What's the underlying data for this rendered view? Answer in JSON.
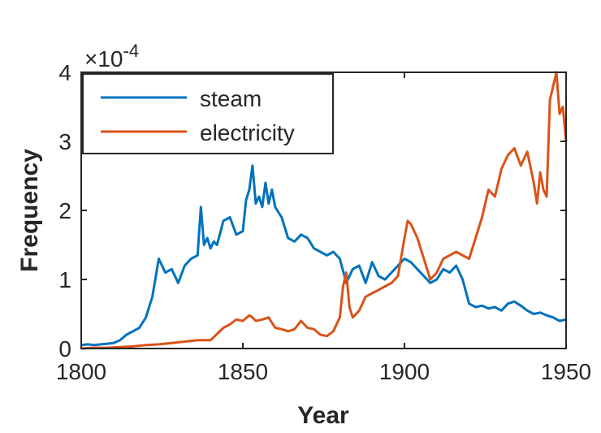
{
  "chart_data": {
    "type": "line",
    "xlabel": "Year",
    "ylabel": "Frequency",
    "y_multiplier": "×10",
    "y_exponent": "-4",
    "xlim": [
      1800,
      1950
    ],
    "ylim": [
      0,
      4
    ],
    "xticks": [
      "1800",
      "1850",
      "1900",
      "1950"
    ],
    "yticks": [
      "0",
      "1",
      "2",
      "3",
      "4"
    ],
    "grid": false,
    "legend_position": "top-left",
    "series": [
      {
        "name": "steam",
        "color": "#0072BD",
        "x": [
          1800,
          1802,
          1804,
          1806,
          1808,
          1810,
          1812,
          1814,
          1816,
          1818,
          1820,
          1822,
          1824,
          1826,
          1828,
          1830,
          1832,
          1834,
          1836,
          1837,
          1838,
          1839,
          1840,
          1841,
          1842,
          1844,
          1846,
          1848,
          1850,
          1851,
          1852,
          1853,
          1854,
          1855,
          1856,
          1857,
          1858,
          1859,
          1860,
          1862,
          1864,
          1866,
          1868,
          1870,
          1872,
          1874,
          1876,
          1878,
          1880,
          1882,
          1884,
          1886,
          1888,
          1890,
          1892,
          1894,
          1896,
          1898,
          1900,
          1902,
          1904,
          1906,
          1908,
          1910,
          1912,
          1914,
          1916,
          1918,
          1920,
          1922,
          1924,
          1926,
          1928,
          1930,
          1932,
          1934,
          1936,
          1938,
          1940,
          1942,
          1944,
          1946,
          1948,
          1950
        ],
        "y": [
          0.05,
          0.06,
          0.05,
          0.06,
          0.07,
          0.08,
          0.12,
          0.2,
          0.25,
          0.3,
          0.45,
          0.75,
          1.3,
          1.1,
          1.15,
          0.95,
          1.2,
          1.3,
          1.35,
          2.05,
          1.5,
          1.6,
          1.45,
          1.55,
          1.5,
          1.85,
          1.9,
          1.65,
          1.7,
          2.15,
          2.3,
          2.65,
          2.1,
          2.2,
          2.05,
          2.4,
          2.1,
          2.3,
          2.05,
          1.9,
          1.6,
          1.55,
          1.65,
          1.6,
          1.45,
          1.4,
          1.35,
          1.4,
          1.3,
          0.95,
          1.15,
          1.2,
          0.95,
          1.25,
          1.05,
          1.0,
          1.1,
          1.2,
          1.3,
          1.25,
          1.15,
          1.05,
          0.95,
          1.0,
          1.15,
          1.1,
          1.2,
          1.0,
          0.65,
          0.6,
          0.62,
          0.58,
          0.6,
          0.55,
          0.65,
          0.68,
          0.62,
          0.55,
          0.5,
          0.52,
          0.48,
          0.45,
          0.4,
          0.42
        ]
      },
      {
        "name": "electricity",
        "color": "#D95319",
        "x": [
          1800,
          1804,
          1808,
          1812,
          1816,
          1820,
          1824,
          1828,
          1832,
          1836,
          1840,
          1844,
          1846,
          1848,
          1850,
          1852,
          1853,
          1854,
          1856,
          1858,
          1860,
          1862,
          1864,
          1866,
          1868,
          1870,
          1872,
          1874,
          1876,
          1878,
          1880,
          1881,
          1882,
          1883,
          1884,
          1886,
          1888,
          1890,
          1892,
          1894,
          1896,
          1898,
          1900,
          1901,
          1902,
          1904,
          1906,
          1908,
          1910,
          1912,
          1914,
          1916,
          1918,
          1920,
          1922,
          1924,
          1926,
          1928,
          1930,
          1932,
          1934,
          1936,
          1938,
          1940,
          1941,
          1942,
          1943,
          1944,
          1945,
          1946,
          1947,
          1948,
          1949,
          1950
        ],
        "y": [
          0.0,
          0.01,
          0.01,
          0.02,
          0.03,
          0.05,
          0.06,
          0.08,
          0.1,
          0.12,
          0.12,
          0.3,
          0.35,
          0.42,
          0.4,
          0.48,
          0.45,
          0.4,
          0.42,
          0.45,
          0.3,
          0.28,
          0.25,
          0.28,
          0.4,
          0.3,
          0.28,
          0.2,
          0.18,
          0.25,
          0.45,
          0.9,
          1.1,
          0.6,
          0.45,
          0.55,
          0.75,
          0.8,
          0.85,
          0.9,
          0.95,
          1.05,
          1.6,
          1.85,
          1.8,
          1.6,
          1.3,
          1.0,
          1.1,
          1.3,
          1.35,
          1.4,
          1.35,
          1.3,
          1.6,
          1.9,
          2.3,
          2.2,
          2.6,
          2.8,
          2.9,
          2.65,
          2.85,
          2.4,
          2.1,
          2.55,
          2.3,
          2.2,
          3.6,
          3.8,
          4.0,
          3.4,
          3.5,
          3.0
        ]
      }
    ]
  }
}
